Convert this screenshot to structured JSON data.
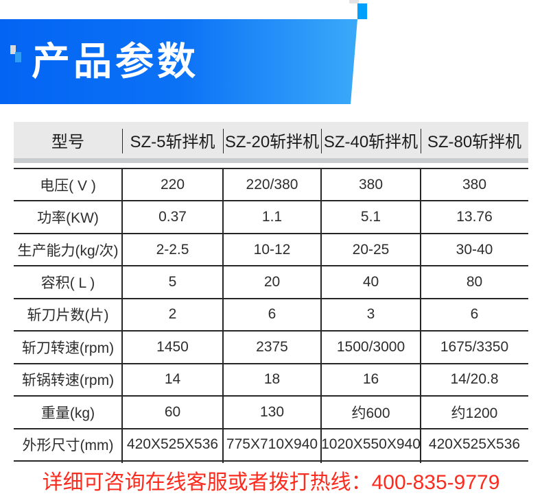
{
  "banner": {
    "title": "产品参数"
  },
  "table": {
    "header": [
      "型号",
      "SZ-5斩拌机",
      "SZ-20斩拌机",
      "SZ-40斩拌机",
      "SZ-80斩拌机"
    ],
    "rows": [
      {
        "label": "电压( V )",
        "values": [
          "220",
          "220/380",
          "380",
          "380"
        ]
      },
      {
        "label": "功率(KW)",
        "values": [
          "0.37",
          "1.1",
          "5.1",
          "13.76"
        ]
      },
      {
        "label": "生产能力(kg/次)",
        "values": [
          "2-2.5",
          "10-12",
          "20-25",
          "30-40"
        ]
      },
      {
        "label": "容积( L )",
        "values": [
          "5",
          "20",
          "40",
          "80"
        ]
      },
      {
        "label": "斩刀片数(片)",
        "values": [
          "2",
          "6",
          "3",
          "6"
        ]
      },
      {
        "label": "斩刀转速(rpm)",
        "values": [
          "1450",
          "2375",
          "1500/3000",
          "1675/3350"
        ]
      },
      {
        "label": "斩锅转速(rpm)",
        "values": [
          "14",
          "18",
          "16",
          "14/20.8"
        ]
      },
      {
        "label": "重量(kg)",
        "values": [
          "60",
          "130",
          "约600",
          "约1200"
        ]
      },
      {
        "label": "外形尺寸(mm)",
        "values": [
          "420X525X536",
          "775X710X940",
          "1020X550X940",
          "420X525X536"
        ]
      }
    ]
  },
  "footer": {
    "hotline_prefix": "详细可咨询在线客服或者拨打热线：",
    "hotline_number": "400-835-9779"
  },
  "colors": {
    "banner_left": "#0364f3",
    "banner_mid": "#0b72f6",
    "banner_right": "#3aa9f9",
    "azure": "#00a1fc",
    "top_gray": "#e3e3e3",
    "left_gray": "#d8dadc",
    "left_blue": "#2e9df3",
    "header_bg": "#e9e9e9",
    "header_text": "#1c1c1c",
    "shadow": "#c9cccf",
    "line": "#262626",
    "text": "#2d2d2d",
    "hotline_red": "#fb2b1e"
  }
}
